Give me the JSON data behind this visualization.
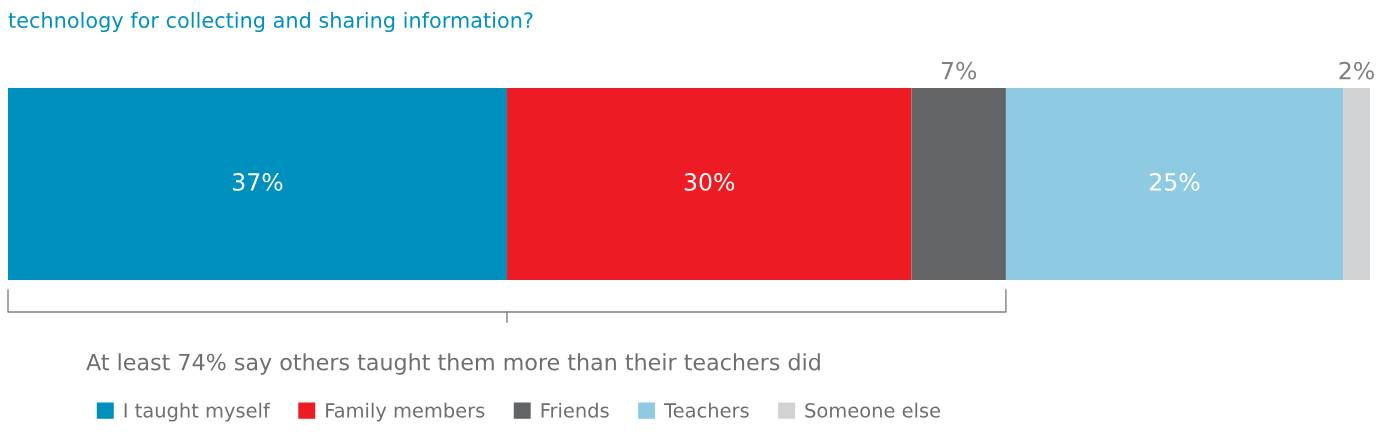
{
  "chart_data": {
    "type": "bar",
    "title": "technology for collecting and sharing information?",
    "orientation": "horizontal",
    "stacked": true,
    "categories": [
      null
    ],
    "legend": "bottom left",
    "tick_labels": false,
    "series": [
      {
        "name": "I taught myself",
        "color": "#0090bd",
        "values": [
          37
        ],
        "value_labels": [
          "37%"
        ]
      },
      {
        "name": "Family members",
        "color": "#ed1c24",
        "values": [
          30
        ],
        "value_labels": [
          "30%"
        ]
      },
      {
        "name": "Friends",
        "color": "#636466",
        "values": [
          7
        ],
        "value_labels": [
          "7%"
        ]
      },
      {
        "name": "Teachers",
        "color": "#8fcae3",
        "values": [
          25
        ],
        "value_labels": [
          "25%"
        ]
      },
      {
        "name": "Someone else",
        "color": "#d1d2d4",
        "values": [
          2
        ],
        "value_labels": [
          "2%"
        ]
      }
    ],
    "annotations": [
      "At least 74% say others taught them more than their teachers did"
    ]
  }
}
